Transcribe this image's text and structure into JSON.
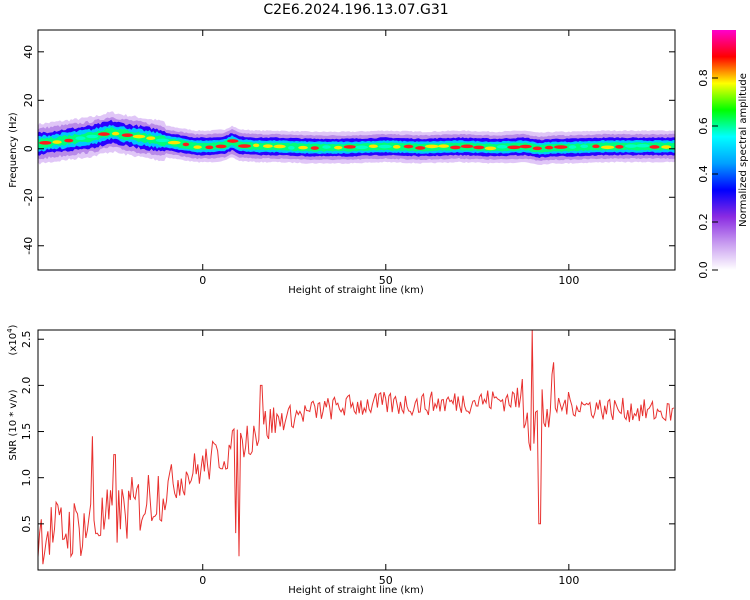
{
  "title": "C2E6.2024.196.13.07.G31",
  "chart_data": [
    {
      "type": "heatmap",
      "title": "",
      "xlabel": "Height of straight line (km)",
      "ylabel": "Frequency (Hz)",
      "xlim": [
        -45,
        129
      ],
      "ylim": [
        -50,
        49
      ],
      "x_ticks": [
        0,
        50,
        100
      ],
      "y_ticks": [
        -40,
        -20,
        0,
        20,
        40
      ],
      "grid": false,
      "colorbar": {
        "label": "Normalized spectral amplitude",
        "range": [
          0,
          1
        ],
        "ticks": [
          "0.0",
          "0.2",
          "0.4",
          "0.6",
          "0.8"
        ],
        "colors": [
          "#ffffff",
          "#c89cf0",
          "#8a2be2",
          "#0000ff",
          "#00a0ff",
          "#00ffff",
          "#00ff00",
          "#ffff00",
          "#ff0000",
          "#ff00cc"
        ]
      },
      "ridge": {
        "x": [
          -45,
          -40,
          -35,
          -30,
          -25,
          -22,
          -18,
          -14,
          -10,
          -6,
          -2,
          2,
          6,
          8,
          10,
          15,
          20,
          30,
          40,
          50,
          60,
          70,
          80,
          88,
          92,
          96,
          100,
          110,
          120,
          129
        ],
        "freq": [
          2,
          3,
          4,
          5,
          7,
          6,
          5,
          4,
          3,
          2,
          1,
          1,
          1.5,
          3,
          1.5,
          1,
          1,
          0.5,
          0.5,
          1,
          0.5,
          1,
          0.5,
          1,
          0,
          0.5,
          0.5,
          1,
          1,
          1
        ]
      }
    },
    {
      "type": "line",
      "title": "",
      "xlabel": "Height of straight line (km)",
      "ylabel": "SNR (10 * v/v)",
      "y_scale_label": "(x10",
      "y_scale_exp": "4",
      "y_scale_close": ")",
      "xlim": [
        -45,
        129
      ],
      "ylim": [
        0,
        2.6
      ],
      "x_ticks": [
        0,
        50,
        100
      ],
      "y_ticks": [
        "0.5",
        "1.0",
        "1.5",
        "2.0",
        "2.5"
      ],
      "grid": false,
      "line_color": "#e8302e",
      "trend": {
        "x": [
          -45,
          -35,
          -25,
          -20,
          -15,
          -10,
          -5,
          0,
          5,
          10,
          15,
          20,
          30,
          40,
          50,
          60,
          70,
          80,
          85,
          88,
          90,
          92,
          95,
          100,
          110,
          120,
          129
        ],
        "snr": [
          0.4,
          0.45,
          0.55,
          0.65,
          0.78,
          0.9,
          1.02,
          1.12,
          1.25,
          1.35,
          1.52,
          1.62,
          1.72,
          1.78,
          1.8,
          1.8,
          1.82,
          1.84,
          1.85,
          1.85,
          1.6,
          1.7,
          1.75,
          1.8,
          1.75,
          1.72,
          1.7
        ]
      },
      "spikes": [
        {
          "x": -30,
          "y": 1.45
        },
        {
          "x": -24,
          "y": 1.25
        },
        {
          "x": 9,
          "y": 0.4
        },
        {
          "x": 10,
          "y": 0.15
        },
        {
          "x": 16,
          "y": 2.0
        },
        {
          "x": 90,
          "y": 2.6
        },
        {
          "x": 92,
          "y": 0.5
        },
        {
          "x": 96,
          "y": 2.25
        }
      ]
    }
  ]
}
